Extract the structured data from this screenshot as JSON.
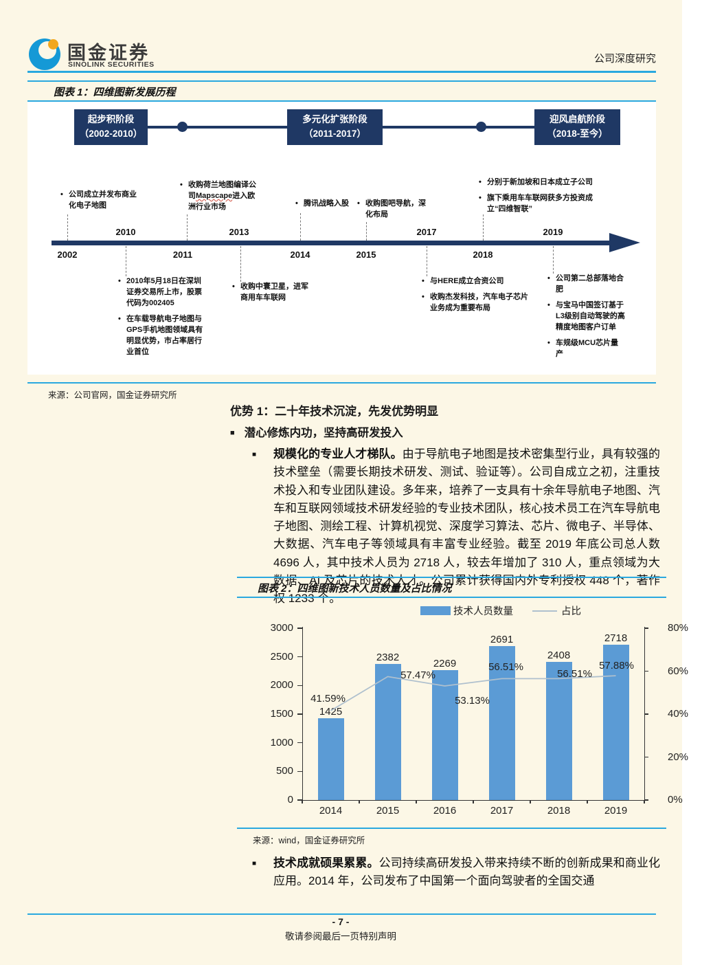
{
  "header": {
    "brand_cn": "国金证券",
    "brand_en": "SINOLINK SECURITIES",
    "doc_type": "公司深度研究"
  },
  "figure1": {
    "title": "图表 1：四维图新发展历程",
    "stages": [
      {
        "line1": "起步积阶段",
        "line2": "（2002-2010）"
      },
      {
        "line1": "多元化扩张阶段",
        "line2": "（2011-2017）"
      },
      {
        "line1": "迎风启航阶段",
        "line2": "（2018-至今）"
      }
    ],
    "years_above": [
      "2010",
      "2013",
      "2017",
      "2019"
    ],
    "years_below": [
      "2002",
      "2011",
      "2014",
      "2015",
      "2018"
    ],
    "events_above": {
      "g1": [
        "公司成立并发布商业化电子地图"
      ],
      "g2_pre": "收购荷兰地图编译公司",
      "g2_word": "Mapscape",
      "g2_post": "进入欧洲行业市场",
      "g3": [
        "腾讯战略入股"
      ],
      "g4": [
        "收购图吧导航，深化布局"
      ],
      "g5": [
        "分别于新加坡和日本成立子公司",
        "旗下乘用车车联网获多方投资成立“四维智联”"
      ]
    },
    "events_below": {
      "g1": [
        "2010年5月18日在深圳证券交易所上市，股票代码为002405",
        "在车载导航电子地图与GPS手机地图领域具有明显优势，市占率居行业首位"
      ],
      "g2": [
        "收购中寰卫星，进军商用车车联网"
      ],
      "g3": [
        "与HERE成立合资公司",
        "收购杰发科技，汽车电子芯片业务成为重要布局"
      ],
      "g4": [
        "公司第二总部落地合肥",
        "与宝马中国签订基于L3级别自动驾驶的高精度地图客户订单",
        "车规级MCU芯片量产"
      ]
    },
    "source": "来源：公司官网，国金证券研究所"
  },
  "section": {
    "heading": "优势 1：二十年技术沉淀，先发优势明显",
    "bullet1": "潜心修炼内功，坚持高研发投入",
    "para1_lead": "规模化的专业人才梯队。",
    "para1_body": "由于导航电子地图是技术密集型行业，具有较强的技术壁垒（需要长期技术研发、测试、验证等）。公司自成立之初，注重技术投入和专业团队建设。多年来，培养了一支具有十余年导航电子地图、汽车和互联网领域技术研发经验的专业技术团队，核心技术员工在汽车导航电子地图、测绘工程、计算机视觉、深度学习算法、芯片、微电子、半导体、大数据、汽车电子等领域具有丰富专业经验。截至 2019 年底公司总人数 4696 人，其中技术人员为 2718 人，较去年增加了 310 人，重点领域为大数据、AI 及芯片的技术人才。公司累计获得国内外专利授权 448 个，著作权 1233 个。",
    "para2_lead": "技术成就硕果累累。",
    "para2_body": "公司持续高研发投入带来持续不断的创新成果和商业化应用。2014 年，公司发布了中国第一个面向驾驶者的全国交通"
  },
  "figure2": {
    "title": "图表 2：四维图新技术人员数量及占比情况",
    "source": "来源：wind，国金证券研究所"
  },
  "chart_data": {
    "type": "bar",
    "title": "四维图新技术人员数量及占比情况",
    "categories": [
      "2014",
      "2015",
      "2016",
      "2017",
      "2018",
      "2019"
    ],
    "series": [
      {
        "name": "技术人员数量",
        "type": "bar",
        "axis": "left",
        "values": [
          1425,
          2382,
          2269,
          2691,
          2408,
          2718
        ]
      },
      {
        "name": "占比",
        "type": "line",
        "axis": "right",
        "values": [
          41.59,
          57.47,
          53.13,
          56.51,
          56.51,
          57.88
        ],
        "labels": [
          "41.59%",
          "57.47%",
          "53.13%",
          "56.51%",
          "56.51%",
          "57.88%"
        ]
      }
    ],
    "left_axis": {
      "min": 0,
      "max": 3000,
      "ticks": [
        0,
        500,
        1000,
        1500,
        2000,
        2500,
        3000
      ]
    },
    "right_axis": {
      "min": 0,
      "max": 80,
      "tick_labels": [
        "0%",
        "20%",
        "40%",
        "60%",
        "80%"
      ]
    },
    "legend_position": "top",
    "grid": false,
    "colors": {
      "bar": "#5B9BD5",
      "line": "#AFC0CE"
    }
  },
  "footer": {
    "page_number": "- 7 -",
    "note": "敬请参阅最后一页特别声明"
  }
}
